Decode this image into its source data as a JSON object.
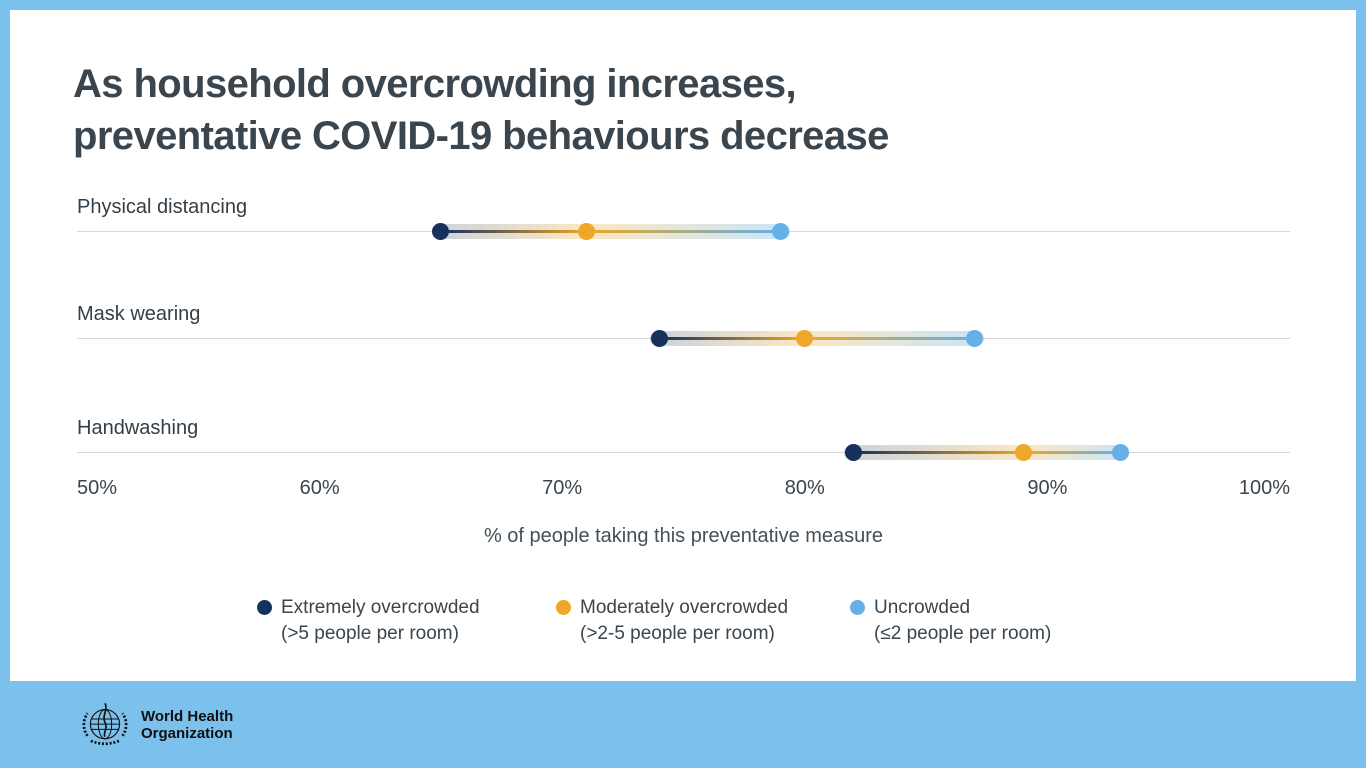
{
  "title": {
    "line1": "As household overcrowding increases,",
    "line2": "preventative COVID-19 behaviours decrease"
  },
  "chart_data": {
    "type": "dumbbell",
    "categories": [
      "Physical distancing",
      "Mask wearing",
      "Handwashing"
    ],
    "series": [
      {
        "name": "Extremely overcrowded (>5 people per room)",
        "color": "#16325c",
        "values": [
          65,
          74,
          82
        ]
      },
      {
        "name": "Moderately overcrowded (>2-5 people per room)",
        "color": "#eda72a",
        "values": [
          71,
          80,
          89
        ]
      },
      {
        "name": "Uncrowded (≤2 people per room)",
        "color": "#65b1e7",
        "values": [
          79,
          87,
          93
        ]
      }
    ],
    "xlabel": "% of people taking this preventative measure",
    "x_ticks": [
      "50%",
      "60%",
      "70%",
      "80%",
      "90%",
      "100%"
    ],
    "xlim": [
      50,
      100
    ],
    "grid": "one horizontal line per category",
    "legend_position": "bottom"
  },
  "legend": {
    "items": [
      {
        "label": "Extremely overcrowded",
        "sublabel": "(>5 people per room)"
      },
      {
        "label": "Moderately overcrowded",
        "sublabel": "(>2-5 people per room)"
      },
      {
        "label": "Uncrowded",
        "sublabel": "(≤2 people per room)"
      }
    ]
  },
  "footer": {
    "org_line1": "World Health",
    "org_line2": "Organization"
  },
  "colors": {
    "frame_blue": "#7cc0ec",
    "card_white": "#ffffff",
    "title_text": "#3a454e",
    "gridline": "#d8d8d8"
  }
}
